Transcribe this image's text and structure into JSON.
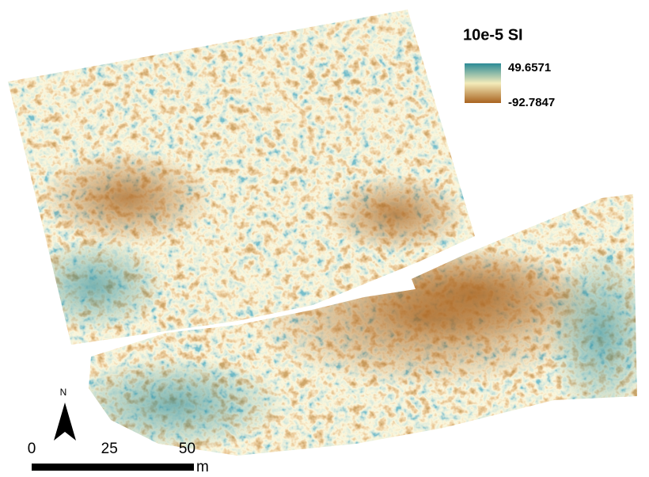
{
  "legend": {
    "title": "10e-5 SI",
    "high": "49.6571",
    "low": "-92.7847"
  },
  "north_arrow": {
    "label": "N"
  },
  "scale_bar": {
    "ticks": [
      0,
      25,
      50
    ],
    "unit": "m"
  }
}
